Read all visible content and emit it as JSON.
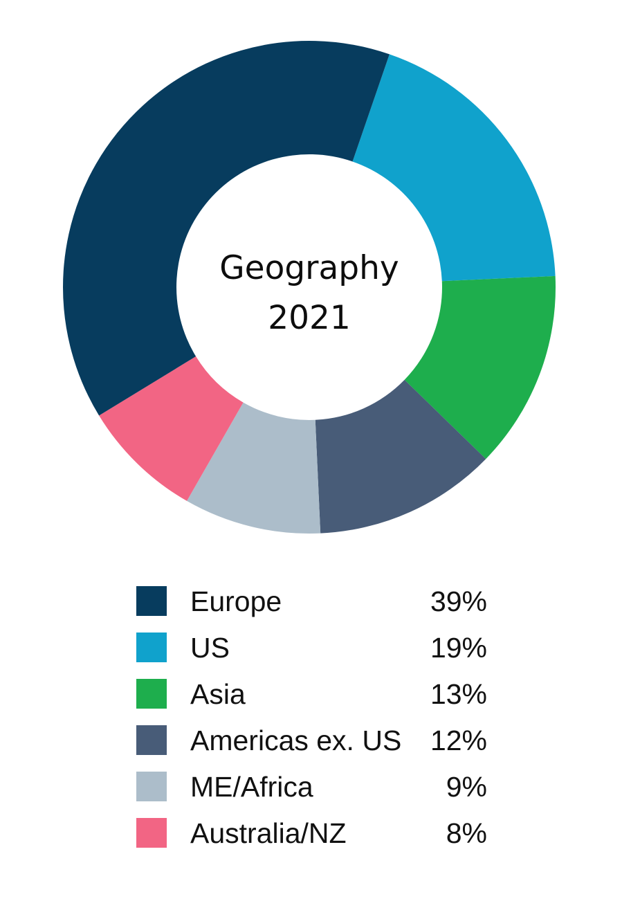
{
  "chart_data": {
    "type": "pie",
    "style": "donut",
    "title": "Geography",
    "subtitle": "2021",
    "categories": [
      "Europe",
      "US",
      "Asia",
      "Americas ex. US",
      "ME/Africa",
      "Australia/NZ"
    ],
    "values": [
      39,
      19,
      13,
      12,
      9,
      8
    ],
    "labels": [
      "39%",
      "19%",
      "13%",
      "12%",
      "9%",
      "8%"
    ],
    "colors": [
      "#073c5e",
      "#10a2cc",
      "#1eae4d",
      "#485c78",
      "#acbdca",
      "#f26584"
    ],
    "unit": "%",
    "legend_position": "bottom"
  }
}
